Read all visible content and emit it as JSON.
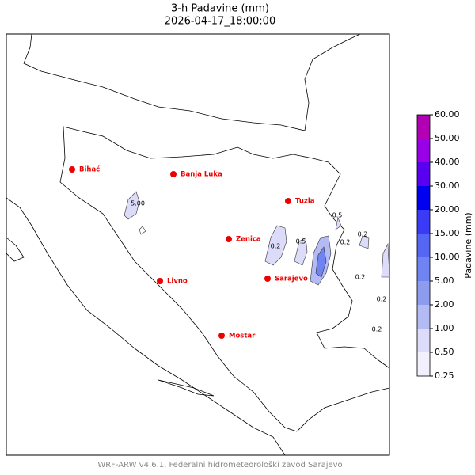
{
  "map": {
    "title": "3-h Padavine (mm)",
    "subtitle": "2026-04-17_18:00:00",
    "cities": [
      "Bihać",
      "Banja Luka",
      "Tuzla",
      "Zenica",
      "Livno",
      "Sarajevo",
      "Mostar"
    ],
    "contour_labels": [
      "5.00",
      "0.2",
      "0.5",
      "0.2",
      "0.5",
      "0.2",
      "0.2",
      "0.2",
      "0.2"
    ],
    "colorbar": {
      "label": "Padavine (mm)",
      "ticks": [
        {
          "value": 0.25,
          "label": "0.25"
        },
        {
          "value": 0.5,
          "label": "0.50"
        },
        {
          "value": 1,
          "label": "1.00"
        },
        {
          "value": 2,
          "label": "2.00"
        },
        {
          "value": 5,
          "label": "5.00"
        },
        {
          "value": 10,
          "label": "10.00"
        },
        {
          "value": 15,
          "label": "15.00"
        },
        {
          "value": 20,
          "label": "20.00"
        },
        {
          "value": 30,
          "label": "30.00"
        },
        {
          "value": 40,
          "label": "40.00"
        },
        {
          "value": 50,
          "label": "50.00"
        },
        {
          "value": 60,
          "label": "60.00"
        }
      ],
      "colors": [
        "#f1f0fc",
        "#dcdcfa",
        "#b4bbf4",
        "#8e9cf0",
        "#7083f2",
        "#5566f5",
        "#3a3af7",
        "#0000f0",
        "#5a00f0",
        "#9a00e8",
        "#b400b4"
      ]
    },
    "footer": "WRF-ARW v4.6.1, Federalni hidrometeorološki zavod Sarajevo"
  }
}
